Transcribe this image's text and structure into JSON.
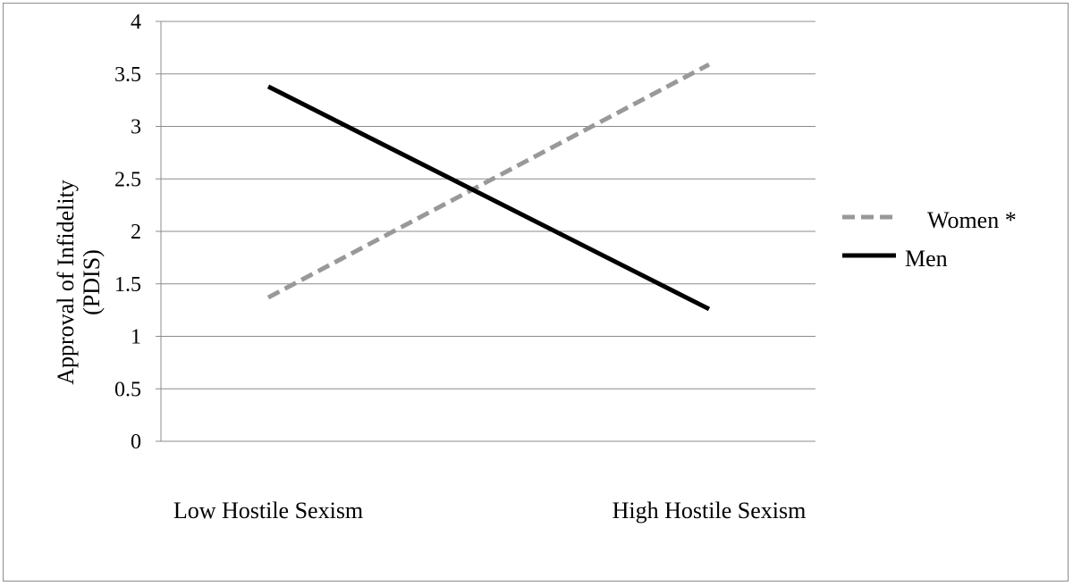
{
  "chart_data": {
    "type": "line",
    "title": "",
    "categories": [
      "Low Hostile Sexism",
      "High Hostile Sexism"
    ],
    "xlabel": "",
    "ylabel": [
      "Approval of Infidelity",
      "(PDIS)"
    ],
    "ylim": [
      0,
      4
    ],
    "yticks": [
      0,
      0.5,
      1,
      1.5,
      2,
      2.5,
      3,
      3.5,
      4
    ],
    "ytick_labels": [
      "0",
      "0.5",
      "1",
      "1.5",
      "2",
      "2.5",
      "3",
      "3.5",
      "4"
    ],
    "grid": true,
    "legend_position": "right",
    "series": [
      {
        "name": "Women *",
        "values": [
          1.37,
          3.59
        ],
        "color": "#999999",
        "style": "dashed"
      },
      {
        "name": "Men",
        "values": [
          3.38,
          1.26
        ],
        "color": "#000000",
        "style": "solid"
      }
    ]
  }
}
